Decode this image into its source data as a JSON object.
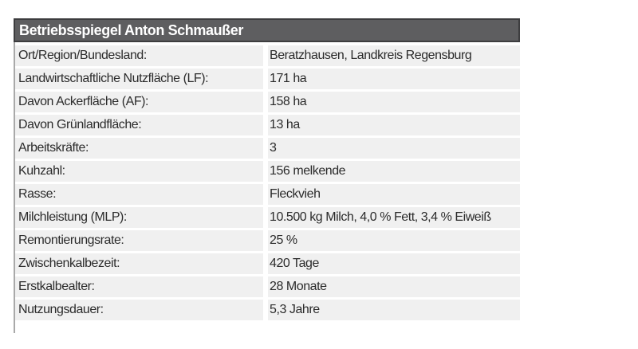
{
  "page": {
    "background": "#ffffff"
  },
  "colors": {
    "header_bg": "#5e5e60",
    "header_border": "#3d3d3f",
    "header_text": "#ffffff",
    "row_bg": "#f0f0f0",
    "row_text": "#2b2b2b",
    "left_rule": "#a9a9a9"
  },
  "table": {
    "title": "Betriebsspiegel Anton Schmaußer",
    "rows": [
      {
        "label": "Ort/Region/Bundesland:",
        "value": "Beratzhausen, Landkreis Regensburg"
      },
      {
        "label": "Landwirtschaftliche Nutzfläche (LF):",
        "value": "171 ha"
      },
      {
        "label": "Davon Ackerfläche (AF):",
        "value": "158 ha"
      },
      {
        "label": "Davon Grünlandfläche:",
        "value": "13 ha"
      },
      {
        "label": "Arbeitskräfte:",
        "value": "3"
      },
      {
        "label": "Kuhzahl:",
        "value": "156 melkende"
      },
      {
        "label": "Rasse:",
        "value": "Fleckvieh"
      },
      {
        "label": "Milchleistung (MLP):",
        "value": "10.500 kg Milch, 4,0 % Fett, 3,4 % Eiweiß"
      },
      {
        "label": "Remontierungsrate:",
        "value": "25 %"
      },
      {
        "label": "Zwischenkalbezeit:",
        "value": "420 Tage"
      },
      {
        "label": "Erstkalbealter:",
        "value": "28 Monate"
      },
      {
        "label": "Nutzungsdauer:",
        "value": "5,3 Jahre"
      }
    ]
  },
  "chart_data": {
    "type": "table",
    "title": "Betriebsspiegel Anton Schmaußer",
    "rows": [
      [
        "Ort/Region/Bundesland:",
        "Beratzhausen, Landkreis Regensburg"
      ],
      [
        "Landwirtschaftliche Nutzfläche (LF):",
        "171 ha"
      ],
      [
        "Davon Ackerfläche (AF):",
        "158 ha"
      ],
      [
        "Davon Grünlandfläche:",
        "13 ha"
      ],
      [
        "Arbeitskräfte:",
        "3"
      ],
      [
        "Kuhzahl:",
        "156 melkende"
      ],
      [
        "Rasse:",
        "Fleckvieh"
      ],
      [
        "Milchleistung (MLP):",
        "10.500 kg Milch, 4,0 % Fett, 3,4 % Eiweiß"
      ],
      [
        "Remontierungsrate:",
        "25 %"
      ],
      [
        "Zwischenkalbezeit:",
        "420 Tage"
      ],
      [
        "Erstkalbealter:",
        "28 Monate"
      ],
      [
        "Nutzungsdauer:",
        "5,3 Jahre"
      ]
    ],
    "layout": {
      "columns": 2,
      "header_style": "dark-gray title bar, white bold text",
      "row_style": "light gray bands separated by white gaps"
    }
  }
}
